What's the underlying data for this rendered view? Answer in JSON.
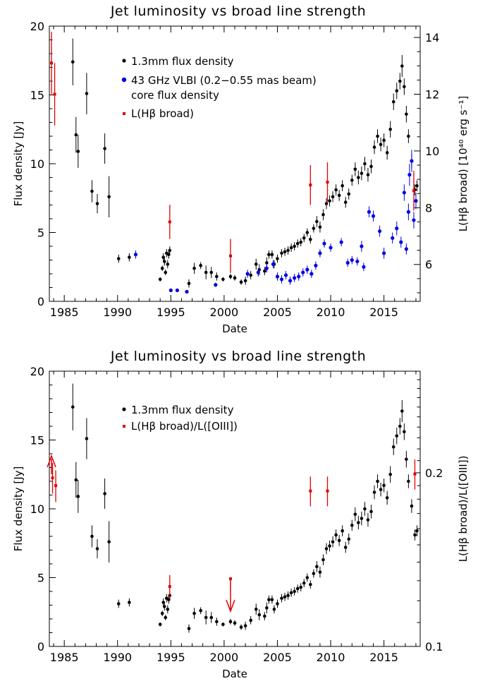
{
  "chart_data": [
    {
      "type": "scatter",
      "title": "Jet luminosity vs broad line strength",
      "xlabel": "Date",
      "ylabel": "Flux density [Jy]",
      "y2label": "L(Hβ broad) [10⁴⁰ erg s⁻¹]",
      "xlim": [
        1983.6,
        2018.4
      ],
      "ylim": [
        0,
        20
      ],
      "y2lim": [
        4.7,
        14.4
      ],
      "xticks": [
        "1985",
        "1990",
        "1995",
        "2000",
        "2005",
        "2010",
        "2015"
      ],
      "yticks": [
        "0",
        "5",
        "10",
        "15",
        "20"
      ],
      "y2ticks": [
        "6",
        "8",
        "10",
        "12",
        "14"
      ],
      "legend": [
        "1.3mm flux density",
        "43 GHz VLBI (0.2−0.55 mas beam)",
        "core flux density",
        "L(Hβ broad)"
      ],
      "colors": {
        "black": "#000000",
        "blue": "#0000e6",
        "red": "#e00000"
      },
      "series": [
        {
          "name": "1.3mm flux density",
          "color": "#000000",
          "points": [
            {
              "x": 1985.8,
              "y": 17.4,
              "err": 1.7
            },
            {
              "x": 1986.1,
              "y": 12.1,
              "err": 1.3
            },
            {
              "x": 1986.3,
              "y": 10.9,
              "err": 1.2
            },
            {
              "x": 1987.1,
              "y": 15.1,
              "err": 1.5
            },
            {
              "x": 1987.6,
              "y": 8.0,
              "err": 0.8
            },
            {
              "x": 1988.1,
              "y": 7.1,
              "err": 0.7
            },
            {
              "x": 1988.8,
              "y": 11.1,
              "err": 1.1
            },
            {
              "x": 1989.2,
              "y": 7.6,
              "err": 1.5
            },
            {
              "x": 1990.1,
              "y": 3.1,
              "err": 0.3
            },
            {
              "x": 1991.1,
              "y": 3.2,
              "err": 0.3
            },
            {
              "x": 1994.0,
              "y": 1.6,
              "err": 0.15
            },
            {
              "x": 1994.2,
              "y": 2.4,
              "err": 0.2
            },
            {
              "x": 1994.3,
              "y": 3.2,
              "err": 0.3
            },
            {
              "x": 1994.4,
              "y": 2.9,
              "err": 0.3
            },
            {
              "x": 1994.5,
              "y": 2.1,
              "err": 0.2
            },
            {
              "x": 1994.6,
              "y": 3.5,
              "err": 0.3
            },
            {
              "x": 1994.7,
              "y": 2.7,
              "err": 0.3
            },
            {
              "x": 1994.8,
              "y": 3.4,
              "err": 0.3
            },
            {
              "x": 1994.9,
              "y": 3.7,
              "err": 0.3
            },
            {
              "x": 1996.7,
              "y": 1.3,
              "err": 0.3
            },
            {
              "x": 1997.2,
              "y": 2.4,
              "err": 0.4
            },
            {
              "x": 1997.8,
              "y": 2.6,
              "err": 0.25
            },
            {
              "x": 1998.3,
              "y": 2.1,
              "err": 0.5
            },
            {
              "x": 1998.8,
              "y": 2.1,
              "err": 0.4
            },
            {
              "x": 1999.3,
              "y": 1.8,
              "err": 0.3
            },
            {
              "x": 1999.9,
              "y": 1.6,
              "err": 0.15
            },
            {
              "x": 2000.6,
              "y": 1.8,
              "err": 0.2
            },
            {
              "x": 2001.0,
              "y": 1.7,
              "err": 0.2
            },
            {
              "x": 2001.6,
              "y": 1.4,
              "err": 0.2
            },
            {
              "x": 2002.0,
              "y": 1.5,
              "err": 0.3
            },
            {
              "x": 2002.5,
              "y": 1.9,
              "err": 0.3
            },
            {
              "x": 2003.0,
              "y": 2.7,
              "err": 0.4
            },
            {
              "x": 2003.3,
              "y": 2.3,
              "err": 0.4
            },
            {
              "x": 2003.8,
              "y": 2.2,
              "err": 0.3
            },
            {
              "x": 2004.0,
              "y": 2.8,
              "err": 0.4
            },
            {
              "x": 2004.2,
              "y": 3.4,
              "err": 0.3
            },
            {
              "x": 2004.5,
              "y": 3.4,
              "err": 0.3
            },
            {
              "x": 2004.7,
              "y": 2.7,
              "err": 0.3
            },
            {
              "x": 2005.0,
              "y": 3.1,
              "err": 0.3
            },
            {
              "x": 2005.4,
              "y": 3.5,
              "err": 0.3
            },
            {
              "x": 2005.7,
              "y": 3.6,
              "err": 0.3
            },
            {
              "x": 2006.0,
              "y": 3.7,
              "err": 0.3
            },
            {
              "x": 2006.3,
              "y": 3.9,
              "err": 0.3
            },
            {
              "x": 2006.6,
              "y": 4.0,
              "err": 0.3
            },
            {
              "x": 2006.9,
              "y": 4.2,
              "err": 0.3
            },
            {
              "x": 2007.2,
              "y": 4.3,
              "err": 0.3
            },
            {
              "x": 2007.5,
              "y": 4.6,
              "err": 0.3
            },
            {
              "x": 2007.8,
              "y": 5.0,
              "err": 0.3
            },
            {
              "x": 2008.1,
              "y": 4.5,
              "err": 0.3
            },
            {
              "x": 2008.4,
              "y": 5.3,
              "err": 0.3
            },
            {
              "x": 2008.7,
              "y": 5.8,
              "err": 0.4
            },
            {
              "x": 2009.0,
              "y": 5.4,
              "err": 0.4
            },
            {
              "x": 2009.3,
              "y": 6.3,
              "err": 0.4
            },
            {
              "x": 2009.6,
              "y": 7.1,
              "err": 0.4
            },
            {
              "x": 2009.9,
              "y": 7.3,
              "err": 0.4
            },
            {
              "x": 2010.2,
              "y": 7.6,
              "err": 0.4
            },
            {
              "x": 2010.5,
              "y": 8.1,
              "err": 0.4
            },
            {
              "x": 2010.8,
              "y": 7.7,
              "err": 0.4
            },
            {
              "x": 2011.1,
              "y": 8.4,
              "err": 0.4
            },
            {
              "x": 2011.4,
              "y": 7.2,
              "err": 0.4
            },
            {
              "x": 2011.7,
              "y": 7.8,
              "err": 0.4
            },
            {
              "x": 2012.0,
              "y": 8.8,
              "err": 0.4
            },
            {
              "x": 2012.3,
              "y": 9.6,
              "err": 0.5
            },
            {
              "x": 2012.6,
              "y": 9.0,
              "err": 0.5
            },
            {
              "x": 2012.9,
              "y": 9.3,
              "err": 0.5
            },
            {
              "x": 2013.2,
              "y": 10.0,
              "err": 0.5
            },
            {
              "x": 2013.5,
              "y": 9.2,
              "err": 0.5
            },
            {
              "x": 2013.8,
              "y": 9.8,
              "err": 0.5
            },
            {
              "x": 2014.1,
              "y": 11.2,
              "err": 0.5
            },
            {
              "x": 2014.4,
              "y": 12.0,
              "err": 0.5
            },
            {
              "x": 2014.7,
              "y": 11.4,
              "err": 0.5
            },
            {
              "x": 2015.0,
              "y": 11.7,
              "err": 0.5
            },
            {
              "x": 2015.3,
              "y": 10.8,
              "err": 0.5
            },
            {
              "x": 2015.6,
              "y": 12.5,
              "err": 0.6
            },
            {
              "x": 2015.9,
              "y": 14.5,
              "err": 0.6
            },
            {
              "x": 2016.2,
              "y": 15.3,
              "err": 0.6
            },
            {
              "x": 2016.5,
              "y": 16.0,
              "err": 0.6
            },
            {
              "x": 2016.7,
              "y": 17.1,
              "err": 0.8
            },
            {
              "x": 2016.9,
              "y": 15.6,
              "err": 0.6
            },
            {
              "x": 2017.1,
              "y": 13.6,
              "err": 0.6
            },
            {
              "x": 2017.3,
              "y": 12.0,
              "err": 0.5
            },
            {
              "x": 2017.6,
              "y": 10.2,
              "err": 0.5
            },
            {
              "x": 2017.9,
              "y": 8.1,
              "err": 0.4
            },
            {
              "x": 2018.1,
              "y": 8.4,
              "err": 0.4
            }
          ]
        },
        {
          "name": "43 GHz VLBI (0.2−0.55 mas beam) core flux density",
          "color": "#0000e6",
          "points": [
            {
              "x": 1991.7,
              "y": 3.4,
              "err": 0.3
            },
            {
              "x": 1995.0,
              "y": 0.8,
              "err": 0.1
            },
            {
              "x": 1995.6,
              "y": 0.8,
              "err": 0.1
            },
            {
              "x": 1996.5,
              "y": 0.7,
              "err": 0.1
            },
            {
              "x": 1999.2,
              "y": 1.2,
              "err": 0.15
            },
            {
              "x": 2002.2,
              "y": 2.0,
              "err": 0.3
            },
            {
              "x": 2003.2,
              "y": 2.1,
              "err": 0.3
            },
            {
              "x": 2004.0,
              "y": 2.4,
              "err": 0.3
            },
            {
              "x": 2004.6,
              "y": 2.7,
              "err": 0.3
            },
            {
              "x": 2005.0,
              "y": 1.8,
              "err": 0.3
            },
            {
              "x": 2005.4,
              "y": 1.6,
              "err": 0.3
            },
            {
              "x": 2005.8,
              "y": 1.9,
              "err": 0.3
            },
            {
              "x": 2006.2,
              "y": 1.5,
              "err": 0.3
            },
            {
              "x": 2006.6,
              "y": 1.7,
              "err": 0.3
            },
            {
              "x": 2007.0,
              "y": 1.8,
              "err": 0.3
            },
            {
              "x": 2007.4,
              "y": 2.1,
              "err": 0.3
            },
            {
              "x": 2007.8,
              "y": 2.3,
              "err": 0.3
            },
            {
              "x": 2008.2,
              "y": 2.0,
              "err": 0.3
            },
            {
              "x": 2008.6,
              "y": 2.6,
              "err": 0.3
            },
            {
              "x": 2009.0,
              "y": 3.5,
              "err": 0.3
            },
            {
              "x": 2009.4,
              "y": 4.2,
              "err": 0.3
            },
            {
              "x": 2010.0,
              "y": 3.9,
              "err": 0.3
            },
            {
              "x": 2011.0,
              "y": 4.3,
              "err": 0.3
            },
            {
              "x": 2011.6,
              "y": 2.8,
              "err": 0.3
            },
            {
              "x": 2012.0,
              "y": 3.0,
              "err": 0.3
            },
            {
              "x": 2012.5,
              "y": 2.9,
              "err": 0.3
            },
            {
              "x": 2012.9,
              "y": 4.0,
              "err": 0.4
            },
            {
              "x": 2013.1,
              "y": 2.5,
              "err": 0.3
            },
            {
              "x": 2013.6,
              "y": 6.5,
              "err": 0.4
            },
            {
              "x": 2014.0,
              "y": 6.2,
              "err": 0.4
            },
            {
              "x": 2014.6,
              "y": 5.1,
              "err": 0.4
            },
            {
              "x": 2015.0,
              "y": 3.5,
              "err": 0.4
            },
            {
              "x": 2015.8,
              "y": 4.6,
              "err": 0.4
            },
            {
              "x": 2016.2,
              "y": 5.3,
              "err": 0.5
            },
            {
              "x": 2016.6,
              "y": 4.3,
              "err": 0.4
            },
            {
              "x": 2016.9,
              "y": 7.9,
              "err": 0.6
            },
            {
              "x": 2017.1,
              "y": 3.8,
              "err": 0.4
            },
            {
              "x": 2017.3,
              "y": 6.5,
              "err": 0.6
            },
            {
              "x": 2017.4,
              "y": 9.2,
              "err": 0.8
            },
            {
              "x": 2017.6,
              "y": 10.2,
              "err": 0.8
            },
            {
              "x": 2017.8,
              "y": 5.9,
              "err": 0.6
            },
            {
              "x": 2018.0,
              "y": 7.3,
              "err": 0.6
            }
          ]
        },
        {
          "name": "L(Hβ broad)",
          "color": "#e00000",
          "axis": "right",
          "points": [
            {
              "x": 1983.8,
              "y": 13.1,
              "err": 1.1
            },
            {
              "x": 1984.1,
              "y": 12.0,
              "err": 1.1
            },
            {
              "x": 1994.9,
              "y": 7.5,
              "err": 0.6
            },
            {
              "x": 2000.6,
              "y": 6.3,
              "err": 0.6
            },
            {
              "x": 2008.1,
              "y": 8.8,
              "err": 0.7
            },
            {
              "x": 2009.7,
              "y": 8.9,
              "err": 0.7
            },
            {
              "x": 2017.8,
              "y": 8.6,
              "err": 0.7
            }
          ]
        }
      ]
    },
    {
      "type": "scatter",
      "title": "Jet luminosity vs broad line strength",
      "xlabel": "Date",
      "ylabel": "Flux density [Jy]",
      "y2label": "L(Hβ broad)/L([OIII])",
      "xlim": [
        1983.6,
        2018.4
      ],
      "ylim": [
        0,
        20
      ],
      "y2scale": "log",
      "y2lim": [
        0.1,
        0.3
      ],
      "xticks": [
        "1985",
        "1990",
        "1995",
        "2000",
        "2005",
        "2010",
        "2015"
      ],
      "yticks": [
        "0",
        "5",
        "10",
        "15",
        "20"
      ],
      "y2ticks": [
        "0.1",
        "0.2"
      ],
      "legend": [
        "1.3mm flux density",
        "L(Hβ broad)/L([OIII])"
      ],
      "series": [
        {
          "name": "1.3mm flux density",
          "color": "#000000",
          "same_as_panel": 1
        },
        {
          "name": "L(Hβ broad)/L([OIII])",
          "color": "#e00000",
          "axis": "right",
          "points": [
            {
              "x": 1983.9,
              "y": 0.196,
              "err": 0.012
            },
            {
              "x": 1984.2,
              "y": 0.19,
              "err": 0.012
            },
            {
              "x": 1994.9,
              "y": 0.127,
              "err": 0.006
            },
            {
              "x": 2008.1,
              "y": 0.186,
              "err": 0.011
            },
            {
              "x": 2009.7,
              "y": 0.186,
              "err": 0.011
            },
            {
              "x": 2017.9,
              "y": 0.199,
              "err": 0.012
            }
          ],
          "lower_limits": [
            {
              "x": 1983.8,
              "y": 0.208
            }
          ],
          "upper_limits": [
            {
              "x": 2000.6,
              "y": 0.131
            }
          ]
        }
      ]
    }
  ]
}
